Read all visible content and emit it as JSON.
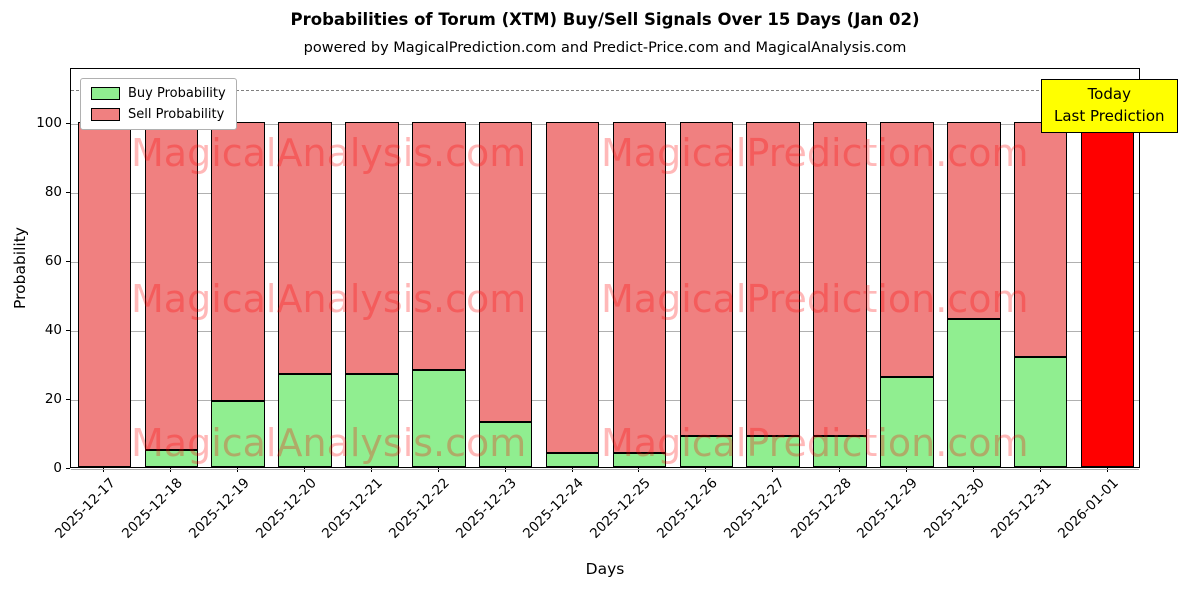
{
  "title": "Probabilities of Torum (XTM) Buy/Sell Signals Over 15 Days (Jan 02)",
  "subtitle": "powered by MagicalPrediction.com and Predict-Price.com and MagicalAnalysis.com",
  "xlabel": "Days",
  "ylabel": "Probability",
  "legend": {
    "items": [
      {
        "label": "Buy Probability",
        "color": "#90EE90"
      },
      {
        "label": "Sell Probability",
        "color": "#F08080"
      }
    ]
  },
  "annotation": {
    "line1": "Today",
    "line2": "Last Prediction",
    "bg": "#FFFF00"
  },
  "watermarks": [
    "MagicalAnalysis.com",
    "MagicalPrediction.com"
  ],
  "chart_data": {
    "type": "bar",
    "stacked": true,
    "title": "Probabilities of Torum (XTM) Buy/Sell Signals Over 15 Days (Jan 02)",
    "xlabel": "Days",
    "ylabel": "Probability",
    "categories": [
      "2025-12-17",
      "2025-12-18",
      "2025-12-19",
      "2025-12-20",
      "2025-12-21",
      "2025-12-22",
      "2025-12-23",
      "2025-12-24",
      "2025-12-25",
      "2025-12-26",
      "2025-12-27",
      "2025-12-28",
      "2025-12-29",
      "2025-12-30",
      "2025-12-31",
      "2026-01-01"
    ],
    "series": [
      {
        "name": "Buy Probability",
        "color": "#90EE90",
        "values": [
          0,
          5,
          19,
          27,
          27,
          28,
          13,
          4,
          4,
          9,
          9,
          9,
          26,
          43,
          32,
          0
        ]
      },
      {
        "name": "Sell Probability",
        "color": "#F08080",
        "values": [
          100,
          95,
          81,
          73,
          73,
          72,
          87,
          96,
          96,
          91,
          91,
          91,
          74,
          57,
          68,
          100
        ]
      }
    ],
    "last_bar_color": "#FF0000",
    "yticks": [
      0,
      20,
      40,
      60,
      80,
      100
    ],
    "ylim": [
      0,
      116
    ],
    "dashed_line_y": 110,
    "grid": "horizontal",
    "legend_position": "upper-left",
    "bar_edge_color": "#000000"
  }
}
